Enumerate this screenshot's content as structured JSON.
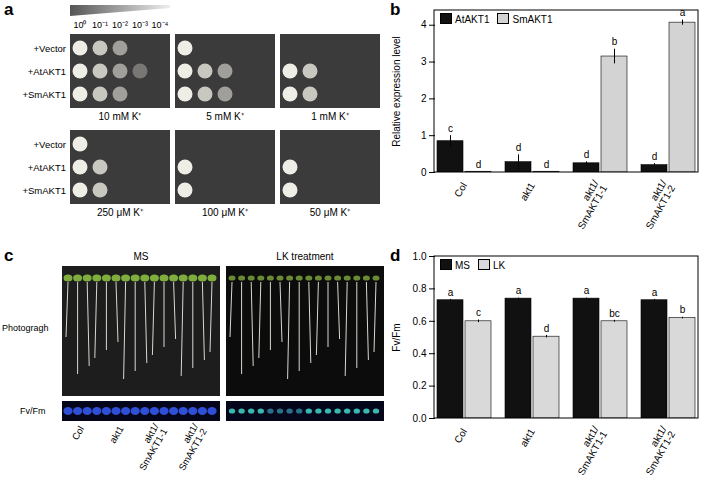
{
  "panel_labels": [
    "a",
    "b",
    "c",
    "d"
  ],
  "spot_assay": {
    "dilutions": [
      "10⁰",
      "10⁻¹",
      "10⁻²",
      "10⁻³",
      "10⁻⁴"
    ],
    "rows": [
      "+Vector",
      "+AtAKT1",
      "+SmAKT1"
    ],
    "plates": [
      {
        "label": "10 mM K⁺",
        "spots": [
          3,
          4,
          3
        ]
      },
      {
        "label": "5 mM K⁺",
        "spots": [
          1,
          3,
          3
        ]
      },
      {
        "label": "1 mM K⁺",
        "spots": [
          0,
          2,
          2
        ]
      },
      {
        "label": "250 μM K⁺",
        "spots": [
          1,
          2,
          2
        ]
      },
      {
        "label": "100 μM K⁺",
        "spots": [
          0,
          1,
          1
        ]
      },
      {
        "label": "50 μM K⁺",
        "spots": [
          0,
          1,
          1
        ]
      }
    ]
  },
  "seedling_photos": {
    "panels": [
      "MS",
      "LK treatment"
    ],
    "rows": [
      "Photogragh",
      "Fv/Fm"
    ],
    "categories": [
      "Col",
      "akt1",
      "akt1/\nSmAKT1-1",
      "akt1/\nSmAKT1-2"
    ]
  },
  "chart_data": [
    {
      "type": "bar",
      "ylabel": "Relative expression level",
      "categories": [
        "Col",
        "akt1",
        "akt1/\nSmAKT1-1",
        "akt1/\nSmAKT1-2"
      ],
      "series": [
        {
          "name": "AtAKT1",
          "color": "#111111",
          "values": [
            0.85,
            0.28,
            0.25,
            0.2
          ],
          "errors": [
            0.15,
            0.2,
            0.04,
            0.04
          ],
          "letters": [
            "c",
            "d",
            "d",
            "d"
          ]
        },
        {
          "name": "SmAKT1",
          "color": "#d3d3d3",
          "values": [
            0.02,
            0.02,
            3.15,
            4.07
          ],
          "errors": [
            0,
            0,
            0.2,
            0.07
          ],
          "letters": [
            "d",
            "d",
            "b",
            "a"
          ]
        }
      ],
      "ylim": [
        0,
        4.4
      ],
      "yticks": [
        0,
        1,
        2,
        3,
        4
      ],
      "legend": "top-left"
    },
    {
      "type": "bar",
      "ylabel": "Fv/Fm",
      "categories": [
        "Col",
        "akt1",
        "akt1/\nSmAKT1-1",
        "akt1/\nSmAKT1-2"
      ],
      "series": [
        {
          "name": "MS",
          "color": "#111111",
          "values": [
            0.73,
            0.74,
            0.74,
            0.73
          ],
          "errors": [
            0.005,
            0.003,
            0.003,
            0.005
          ],
          "letters": [
            "a",
            "a",
            "a",
            "a"
          ]
        },
        {
          "name": "LK",
          "color": "#d9d9d9",
          "values": [
            0.6,
            0.505,
            0.6,
            0.62
          ],
          "errors": [
            0.008,
            0.008,
            0.006,
            0.005
          ],
          "letters": [
            "c",
            "d",
            "bc",
            "b"
          ]
        }
      ],
      "ylim": [
        0,
        1
      ],
      "yticks": [
        {
          "value": 0,
          "label": "0.0"
        },
        0.2,
        0.4,
        0.6,
        0.8,
        {
          "value": 1,
          "label": "1.0"
        }
      ],
      "legend": "top-left"
    }
  ]
}
